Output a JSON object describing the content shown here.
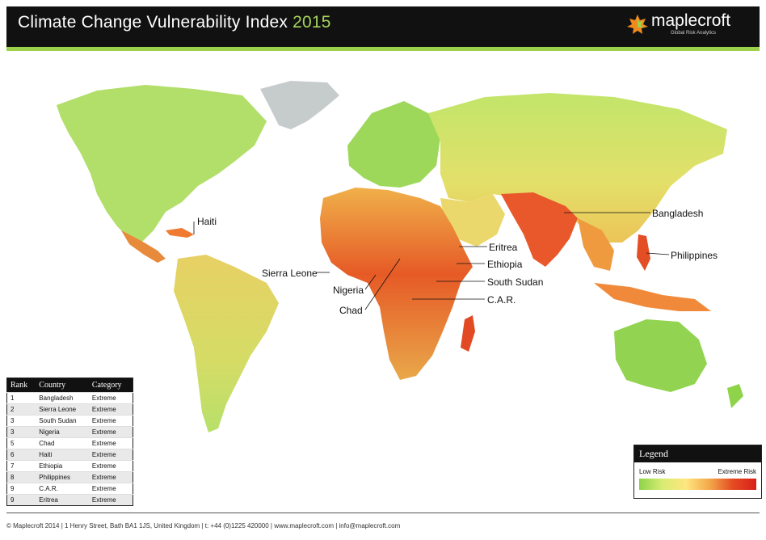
{
  "header": {
    "title": "Climate Change Vulnerability Index",
    "year": "2015",
    "brand": "maplecroft",
    "brand_tagline": "Global Risk Analytics",
    "accent_color": "#9bd14b",
    "brand_icon": "maple-leaf-icon"
  },
  "labels": [
    {
      "id": "bangladesh",
      "text": "Bangladesh"
    },
    {
      "id": "philippines",
      "text": "Philippines"
    },
    {
      "id": "haiti",
      "text": "Haiti"
    },
    {
      "id": "sierra-leone",
      "text": "Sierra Leone"
    },
    {
      "id": "nigeria",
      "text": "Nigeria"
    },
    {
      "id": "chad",
      "text": "Chad"
    },
    {
      "id": "eritrea",
      "text": "Eritrea"
    },
    {
      "id": "ethiopia",
      "text": "Ethiopia"
    },
    {
      "id": "south-sudan",
      "text": "South Sudan"
    },
    {
      "id": "car",
      "text": "C.A.R."
    }
  ],
  "ranking": {
    "headers": [
      "Rank",
      "Country",
      "Category"
    ],
    "rows": [
      [
        "1",
        "Bangladesh",
        "Extreme"
      ],
      [
        "2",
        "Sierra Leone",
        "Extreme"
      ],
      [
        "3",
        "South Sudan",
        "Extreme"
      ],
      [
        "3",
        "Nigeria",
        "Extreme"
      ],
      [
        "5",
        "Chad",
        "Extreme"
      ],
      [
        "6",
        "Haiti",
        "Extreme"
      ],
      [
        "7",
        "Ethiopia",
        "Extreme"
      ],
      [
        "8",
        "Philippines",
        "Extreme"
      ],
      [
        "9",
        "C.A.R.",
        "Extreme"
      ],
      [
        "9",
        "Eritrea",
        "Extreme"
      ]
    ]
  },
  "legend": {
    "title": "Legend",
    "low_label": "Low Risk",
    "high_label": "Extreme Risk",
    "scale_colors": [
      "#8fd34a",
      "#d8ec72",
      "#ffe680",
      "#f3a84a",
      "#e54b22",
      "#d81f1a"
    ]
  },
  "footer": {
    "text": "© Maplecroft 2014 | 1 Henry Street, Bath BA1 1JS, United Kingdom | t: +44 (0)1225 420000 | www.maplecroft.com | info@maplecroft.com"
  }
}
